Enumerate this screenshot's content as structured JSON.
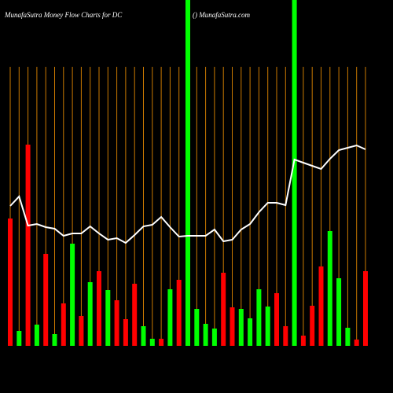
{
  "chart_data": {
    "type": "bar",
    "title": "MunafaSutra  Money Flow  Charts for DC",
    "subtitle": "() MunafaSutra.com",
    "values": [
      162,
      19,
      256,
      27,
      117,
      15,
      54,
      130,
      38,
      81,
      95,
      71,
      58,
      34,
      79,
      25,
      9,
      9,
      72,
      84,
      440,
      47,
      28,
      22,
      93,
      49,
      47,
      35,
      72,
      50,
      67,
      25,
      440,
      13,
      51,
      101,
      146,
      86,
      23,
      8,
      95
    ],
    "colors": [
      "#ff0000",
      "#00ff00",
      "#ff0000",
      "#00ff00",
      "#ff0000",
      "#00ff00",
      "#ff0000",
      "#00ff00",
      "#ff0000",
      "#00ff00",
      "#ff0000",
      "#00ff00",
      "#ff0000",
      "#ff0000",
      "#ff0000",
      "#00ff00",
      "#00ff00",
      "#ff0000",
      "#00ff00",
      "#ff0000",
      "#00ff00",
      "#00ff00",
      "#00ff00",
      "#00ff00",
      "#ff0000",
      "#ff0000",
      "#00ff00",
      "#00ff00",
      "#00ff00",
      "#00ff00",
      "#ff0000",
      "#ff0000",
      "#00ff00",
      "#ff0000",
      "#ff0000",
      "#ff0000",
      "#00ff00",
      "#00ff00",
      "#00ff00",
      "#ff0000",
      "#ff0000"
    ],
    "line": {
      "color": "#ffffff",
      "values": [
        178,
        190,
        153,
        155,
        151,
        149,
        140,
        143,
        143,
        152,
        143,
        135,
        137,
        131,
        141,
        152,
        154,
        164,
        151,
        139,
        140,
        140,
        140,
        148,
        133,
        135,
        148,
        155,
        170,
        182,
        182,
        179,
        237,
        233,
        229,
        225,
        238,
        249,
        252,
        255,
        250
      ]
    },
    "grid": true,
    "grid_color": "#cc7a00"
  }
}
